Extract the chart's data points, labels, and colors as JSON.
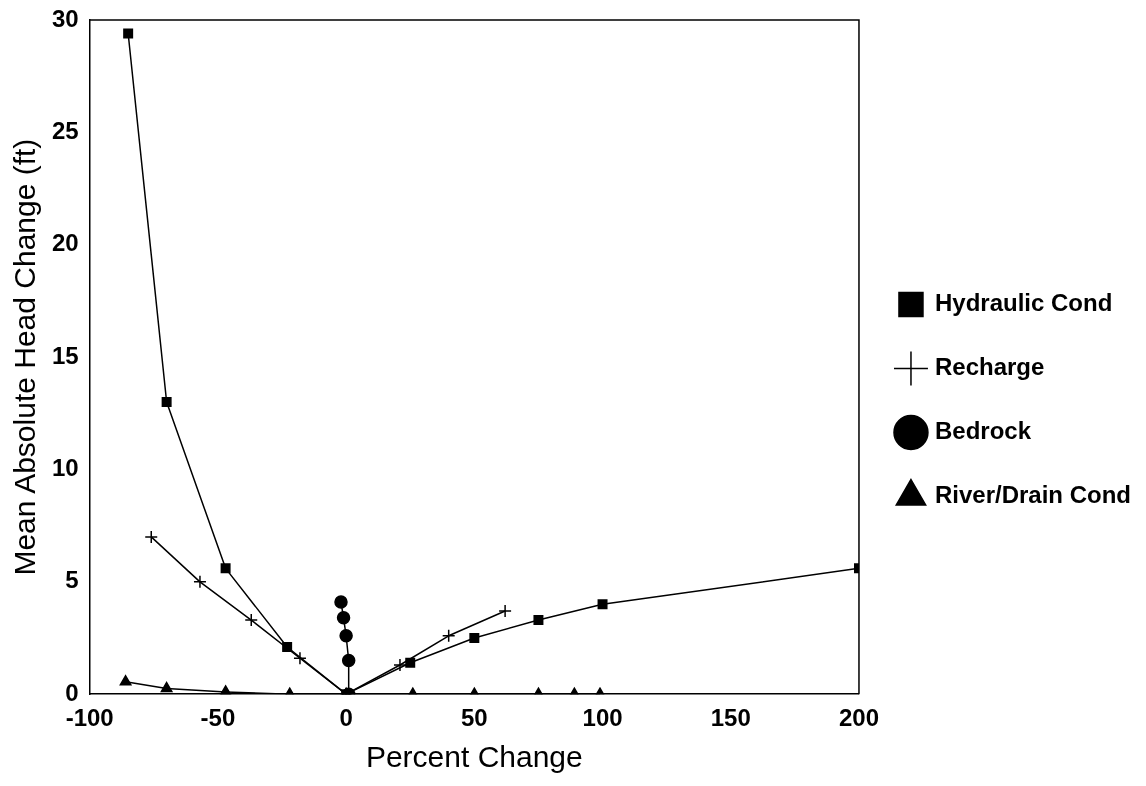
{
  "chart_data": {
    "type": "line",
    "xlabel": "Percent Change",
    "ylabel": "Mean Absolute Head Change (ft)",
    "xlim": [
      -100,
      200
    ],
    "xticks": [
      -100,
      -50,
      0,
      50,
      100,
      150,
      200
    ],
    "ylim": [
      0,
      30
    ],
    "yticks": [
      0,
      5,
      10,
      15,
      20,
      25,
      30
    ],
    "grid": false,
    "legend": "right",
    "line_style": "solid",
    "series": [
      {
        "name": "Hydraulic Cond",
        "color": "#000000",
        "marker": "square",
        "x": [
          -85,
          -70,
          -47,
          -23,
          0,
          25,
          50,
          75,
          100,
          200
        ],
        "values": [
          29.4,
          13.0,
          5.6,
          2.1,
          0,
          1.4,
          2.5,
          3.3,
          4.0,
          5.6
        ]
      },
      {
        "name": "Recharge",
        "color": "#000000",
        "marker": "cross",
        "x": [
          -76,
          -57,
          -37,
          -18,
          0,
          21,
          40,
          62
        ],
        "values": [
          7.0,
          5.0,
          3.3,
          1.6,
          0,
          1.3,
          2.6,
          3.7
        ]
      },
      {
        "name": "Bedrock",
        "color": "#000000",
        "marker": "circle",
        "x": [
          -2,
          -1,
          0,
          1,
          1
        ],
        "values": [
          4.1,
          3.4,
          2.6,
          1.5,
          0
        ]
      },
      {
        "name": "River/Drain Cond",
        "color": "#000000",
        "marker": "triangle",
        "x": [
          -86,
          -70,
          -47,
          -22,
          0,
          26,
          50,
          75,
          89,
          99
        ],
        "values": [
          0.55,
          0.25,
          0.1,
          0,
          0,
          0,
          0,
          0,
          0,
          0
        ]
      }
    ]
  }
}
